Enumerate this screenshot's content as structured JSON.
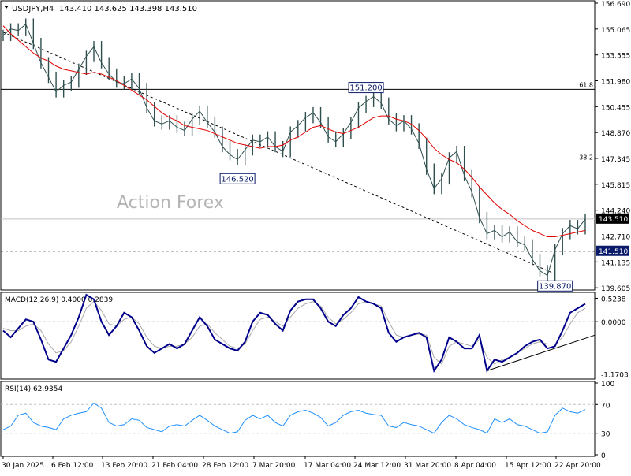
{
  "chart_data": {
    "type": "line",
    "symbol": "USDJPY,H4",
    "ohlc_header": "143.410 143.625 143.398 143.510",
    "watermark": "Action Forex",
    "main": {
      "ylim": [
        139.2,
        156.9
      ],
      "ticks": [
        "156.690",
        "155.065",
        "153.555",
        "151.980",
        "150.455",
        "148.870",
        "147.345",
        "145.815",
        "144.240",
        "142.710",
        "141.135",
        "139.605"
      ],
      "last_price": "143.510",
      "close_series": [
        154.9,
        155.3,
        155.2,
        155.6,
        154.4,
        153.2,
        152.3,
        151.4,
        151.8,
        152.0,
        152.8,
        153.6,
        154.2,
        153.2,
        152.5,
        152.0,
        151.9,
        152.2,
        151.6,
        150.4,
        149.6,
        149.4,
        149.6,
        149.2,
        149.0,
        149.7,
        150.2,
        149.5,
        148.9,
        148.0,
        147.5,
        147.2,
        147.8,
        148.4,
        148.3,
        148.6,
        148.0,
        147.7,
        148.9,
        149.3,
        149.8,
        150.1,
        149.5,
        148.6,
        148.3,
        148.8,
        149.5,
        150.4,
        150.8,
        151.1,
        150.7,
        149.7,
        149.3,
        149.6,
        149.1,
        148.2,
        146.6,
        145.4,
        146.0,
        147.3,
        147.7,
        146.2,
        145.2,
        143.6,
        142.6,
        142.8,
        142.4,
        142.7,
        142.1,
        141.9,
        141.0,
        140.3,
        140.0,
        141.6,
        142.6,
        143.1,
        142.9,
        143.5
      ],
      "ma_series": [
        155.5,
        155.0,
        154.6,
        154.2,
        153.8,
        153.5,
        153.3,
        153.0,
        152.8,
        152.7,
        152.6,
        152.5,
        152.6,
        152.5,
        152.3,
        152.1,
        151.8,
        151.5,
        151.2,
        150.9,
        150.5,
        150.1,
        149.8,
        149.6,
        149.3,
        149.2,
        149.1,
        149.0,
        148.8,
        148.6,
        148.4,
        148.2,
        148.1,
        148.0,
        147.9,
        148.0,
        148.0,
        148.1,
        148.4,
        148.6,
        148.9,
        149.2,
        149.3,
        149.1,
        148.9,
        148.8,
        149.0,
        149.2,
        149.5,
        149.8,
        149.9,
        149.9,
        149.7,
        149.6,
        149.4,
        149.0,
        148.5,
        147.9,
        147.5,
        147.2,
        147.0,
        146.6,
        146.1,
        145.5,
        145.0,
        144.5,
        144.1,
        143.8,
        143.4,
        143.1,
        142.8,
        142.6,
        142.4,
        142.4,
        142.5,
        142.6,
        142.7,
        142.8
      ],
      "fib_levels": [
        {
          "label": "61.8",
          "value": 151.55
        },
        {
          "label": "38.2",
          "value": 147.05
        }
      ],
      "support_level": {
        "label": "141.510",
        "value": 141.51
      },
      "marked_points": [
        {
          "label": "151.200",
          "x_index": 48,
          "value": 151.2
        },
        {
          "label": "146.520",
          "x_index": 31,
          "value": 146.52
        },
        {
          "label": "139.870",
          "x_index": 73,
          "value": 139.87
        }
      ],
      "trendline": {
        "from": {
          "x_index": 0,
          "value": 155.1
        },
        "to": {
          "x_index": 73,
          "value": 140.1
        }
      }
    },
    "macd": {
      "label": "MACD(12,26,9) 0.4000 0.2839",
      "ylim": [
        -1.25,
        0.62
      ],
      "ticks": [
        "0.5238",
        "0.0000",
        "-1.1703"
      ],
      "macd_series": [
        -0.2,
        -0.35,
        -0.15,
        0.05,
        0.0,
        -0.4,
        -0.85,
        -0.9,
        -0.6,
        -0.3,
        0.1,
        0.6,
        0.5,
        0.0,
        -0.3,
        -0.1,
        0.2,
        0.1,
        -0.2,
        -0.55,
        -0.7,
        -0.6,
        -0.5,
        -0.6,
        -0.5,
        -0.2,
        0.1,
        -0.1,
        -0.4,
        -0.5,
        -0.6,
        -0.65,
        -0.45,
        0.0,
        0.2,
        0.15,
        -0.05,
        -0.2,
        0.25,
        0.45,
        0.5,
        0.5,
        0.3,
        0.0,
        -0.1,
        0.15,
        0.3,
        0.55,
        0.45,
        0.4,
        0.3,
        -0.25,
        -0.45,
        -0.35,
        -0.3,
        -0.25,
        -0.35,
        -1.1,
        -0.85,
        -0.35,
        -0.45,
        -0.6,
        -0.6,
        -0.3,
        -1.1,
        -0.85,
        -0.9,
        -0.8,
        -0.7,
        -0.55,
        -0.45,
        -0.4,
        -0.6,
        -0.55,
        -0.2,
        0.2,
        0.3,
        0.4
      ],
      "signal_series": [
        -0.15,
        -0.2,
        -0.2,
        -0.1,
        -0.05,
        -0.2,
        -0.5,
        -0.7,
        -0.65,
        -0.45,
        -0.1,
        0.3,
        0.45,
        0.25,
        -0.05,
        -0.1,
        0.05,
        0.1,
        -0.05,
        -0.35,
        -0.55,
        -0.6,
        -0.55,
        -0.55,
        -0.5,
        -0.35,
        -0.1,
        -0.05,
        -0.25,
        -0.4,
        -0.55,
        -0.6,
        -0.5,
        -0.2,
        0.05,
        0.1,
        0.0,
        -0.1,
        0.1,
        0.3,
        0.4,
        0.45,
        0.35,
        0.1,
        -0.05,
        0.05,
        0.2,
        0.4,
        0.45,
        0.4,
        0.35,
        0.0,
        -0.3,
        -0.35,
        -0.3,
        -0.28,
        -0.3,
        -0.8,
        -0.95,
        -0.55,
        -0.45,
        -0.5,
        -0.55,
        -0.4,
        -0.8,
        -0.95,
        -0.85,
        -0.8,
        -0.7,
        -0.6,
        -0.5,
        -0.45,
        -0.5,
        -0.5,
        -0.35,
        -0.05,
        0.2,
        0.3
      ],
      "trendline": {
        "from": {
          "x_index": 64,
          "value": -1.1
        },
        "to": {
          "x_index": 77,
          "value": -0.55
        }
      }
    },
    "rsi": {
      "label": "RSI(14) 62.9354",
      "ylim": [
        0,
        100
      ],
      "ticks": [
        "100",
        "70",
        "30",
        "0"
      ],
      "levels": [
        70,
        30
      ],
      "series": [
        35,
        40,
        55,
        58,
        45,
        40,
        38,
        35,
        50,
        55,
        58,
        60,
        72,
        65,
        45,
        40,
        42,
        50,
        48,
        38,
        35,
        32,
        40,
        42,
        40,
        48,
        55,
        48,
        40,
        35,
        30,
        32,
        48,
        55,
        50,
        55,
        45,
        40,
        55,
        60,
        62,
        58,
        52,
        40,
        45,
        55,
        60,
        62,
        58,
        56,
        55,
        40,
        38,
        45,
        42,
        40,
        35,
        30,
        45,
        55,
        50,
        42,
        38,
        35,
        30,
        50,
        45,
        50,
        42,
        40,
        35,
        30,
        32,
        55,
        65,
        60,
        58,
        63
      ]
    },
    "x_axis_labels": [
      "30 Jan 2025",
      "6 Feb 12:00",
      "13 Feb 20:00",
      "21 Feb 04:00",
      "28 Feb 12:00",
      "7 Mar 20:00",
      "17 Mar 04:00",
      "24 Mar 12:00",
      "31 Mar 20:00",
      "8 Apr 04:00",
      "15 Apr 12:00",
      "22 Apr 20:00"
    ],
    "colors": {
      "price": "#2f4f4f",
      "ma": "#e00000",
      "macd": "#00008b",
      "signal": "#a9a9a9",
      "rsi": "#1e90ff",
      "label_box_fill": "#0a1a6a",
      "watermark": "#b4b4b4"
    }
  }
}
